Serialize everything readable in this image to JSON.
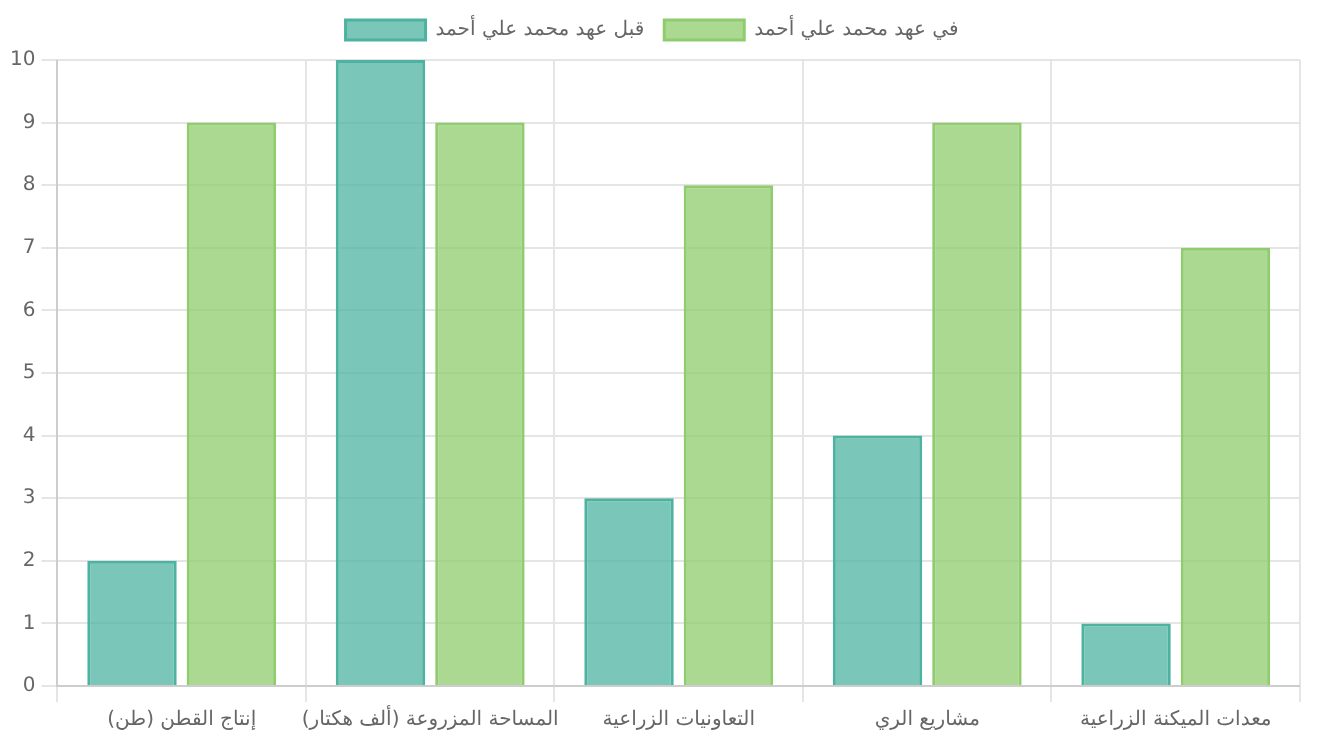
{
  "chart_data": {
    "type": "bar",
    "categories": [
      "إنتاج القطن (طن)",
      "المساحة المزروعة (ألف هكتار)",
      "التعاونيات الزراعية",
      "مشاريع الري",
      "معدات الميكنة الزراعية"
    ],
    "series": [
      {
        "name": "قبل عهد محمد علي أحمد",
        "color": "#4db3a0",
        "values": [
          2,
          10,
          3,
          4,
          1
        ]
      },
      {
        "name": "في عهد محمد علي أحمد",
        "color": "#8fcc6e",
        "values": [
          9,
          9,
          8,
          9,
          7
        ]
      }
    ],
    "ylim": [
      0,
      10
    ],
    "yticks": [
      0,
      1,
      2,
      3,
      4,
      5,
      6,
      7,
      8,
      9,
      10
    ],
    "grid": true,
    "legend": "top"
  }
}
